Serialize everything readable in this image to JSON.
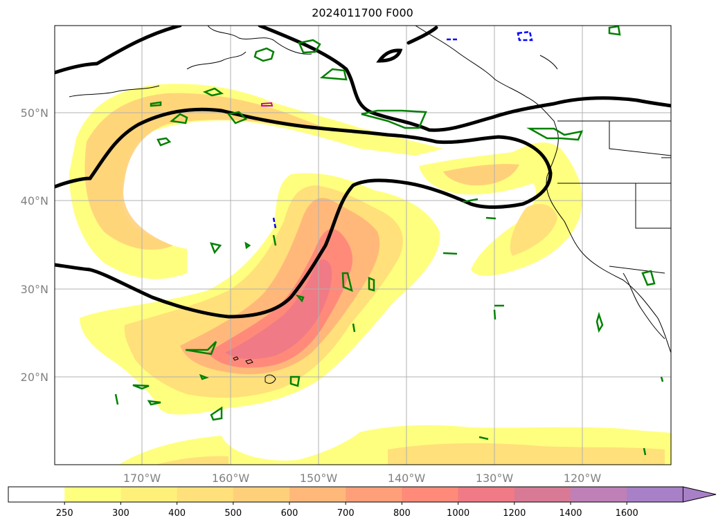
{
  "title": "2024011700 F000",
  "lat_labels": [
    "50°N",
    "40°N",
    "30°N",
    "20°N"
  ],
  "lon_labels": [
    "170°W",
    "160°W",
    "150°W",
    "140°W",
    "130°W",
    "120°W"
  ],
  "colorbar": {
    "ticks": [
      "250",
      "300",
      "400",
      "500",
      "600",
      "700",
      "800",
      "1000",
      "1200",
      "1400",
      "1600"
    ],
    "colors": [
      "#ffffff",
      "#ffff7f",
      "#fff07a",
      "#ffe07a",
      "#ffd07a",
      "#ffb87a",
      "#ff9f7a",
      "#ff8a7a",
      "#f07a85",
      "#d87a95",
      "#bf80b8",
      "#a880c8"
    ],
    "extend": "max"
  },
  "field_colors": {
    "ivt_250": "#ffff7f",
    "ivt_300": "#fff07a",
    "ivt_400": "#ffe07a",
    "ivt_500": "#ffd07a",
    "ivt_600": "#ffb87a",
    "ivt_700": "#ff9f7a",
    "ivt_800": "#ff8a7a",
    "ivt_1000": "#f07a85",
    "contour_black": "#000000",
    "contour_green": "#008000",
    "contour_blue": "#0000ff",
    "contour_magenta": "#c000c0",
    "gridlines": "#b0b0b0",
    "coastline": "#000000"
  }
}
